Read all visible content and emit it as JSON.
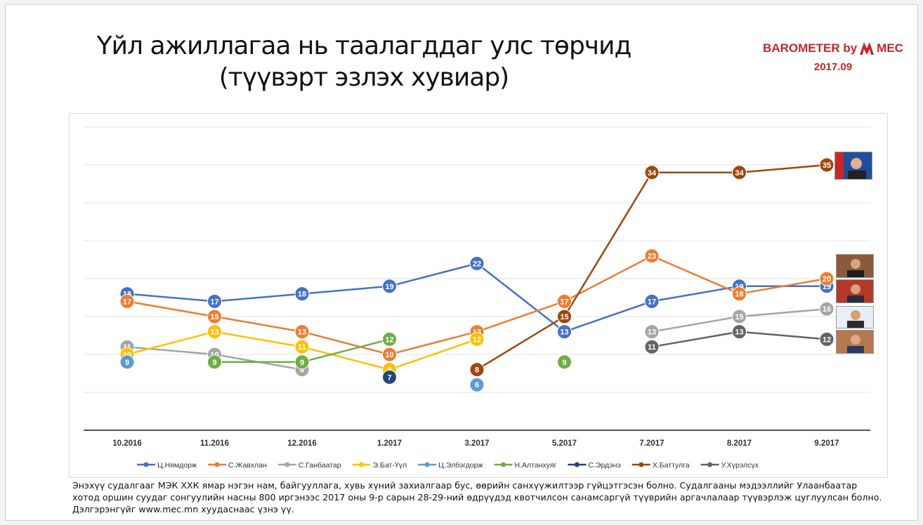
{
  "title": "Үйл ажиллагаа нь таалагддаг улс төрчид (түүвэрт эзлэх хувиар)",
  "brand": {
    "name_prefix": "BAROMETER by",
    "name_suffix": "MEC",
    "date": "2017.09",
    "color": "#c0272d"
  },
  "footnote": "Энэхүү судалгааг МЭК ХХК ямар нэгэн нам, байгууллага, хувь хүний захиалгаар бус, өөрийн санхүүжилтээр гүйцэтгэсэн болно. Судалгааны мэдээллийг Улаанбаатар хотод оршин суудаг сонгуулийн насны 800 иргэнээс 2017 оны 9-р сарын 28-29-ний өдрүүдэд квотчилсон санамсаргүй түүврийн аргачлалаар түүвэрлэж цуглуулсан болно. Дэлгэрэнгүйг www.mec.mn хуудаснаас үзнэ үү.",
  "photos": [
    "president-photo",
    "politician-photo-1",
    "politician-photo-2",
    "politician-photo-3",
    "politician-photo-4"
  ],
  "chart_data": {
    "type": "line",
    "title": "",
    "xlabel": "",
    "ylabel": "",
    "ylim": [
      0,
      40
    ],
    "grid": true,
    "legend_position": "bottom",
    "categories": [
      "10.2016",
      "11.2016",
      "12.2016",
      "1.2017",
      "3.2017",
      "5.2017",
      "7.2017",
      "8.2017",
      "9.2017"
    ],
    "series": [
      {
        "name": "Ц.Нямдорж",
        "color": "#4472c4",
        "values": [
          18,
          17,
          18,
          19,
          22,
          13,
          17,
          19,
          19
        ]
      },
      {
        "name": "С.Жавхлан",
        "color": "#ed7d31",
        "values": [
          17,
          15,
          13,
          10,
          13,
          17,
          23,
          18,
          20
        ]
      },
      {
        "name": "С.Ганбаатар",
        "color": "#a5a5a5",
        "values": [
          11,
          10,
          8,
          null,
          null,
          null,
          13,
          15,
          16
        ]
      },
      {
        "name": "Э.Бат-Үүл",
        "color": "#ffc000",
        "values": [
          10,
          13,
          11,
          8,
          12,
          null,
          null,
          null,
          null
        ]
      },
      {
        "name": "Ц.Элбэгдорж",
        "color": "#5b9bd5",
        "values": [
          9,
          null,
          null,
          null,
          6,
          null,
          null,
          null,
          null
        ]
      },
      {
        "name": "Н.Алтанхуяг",
        "color": "#70ad47",
        "values": [
          null,
          9,
          9,
          12,
          null,
          9,
          null,
          null,
          null
        ]
      },
      {
        "name": "С.Эрдэнэ",
        "color": "#264478",
        "values": [
          null,
          null,
          null,
          7,
          null,
          null,
          null,
          null,
          null
        ]
      },
      {
        "name": "Х.Баттулга",
        "color": "#9e480e",
        "values": [
          null,
          null,
          null,
          null,
          8,
          15,
          34,
          34,
          35
        ]
      },
      {
        "name": "У.Хүрэлсүх",
        "color": "#636363",
        "values": [
          null,
          null,
          null,
          null,
          null,
          null,
          11,
          13,
          12
        ]
      }
    ]
  }
}
